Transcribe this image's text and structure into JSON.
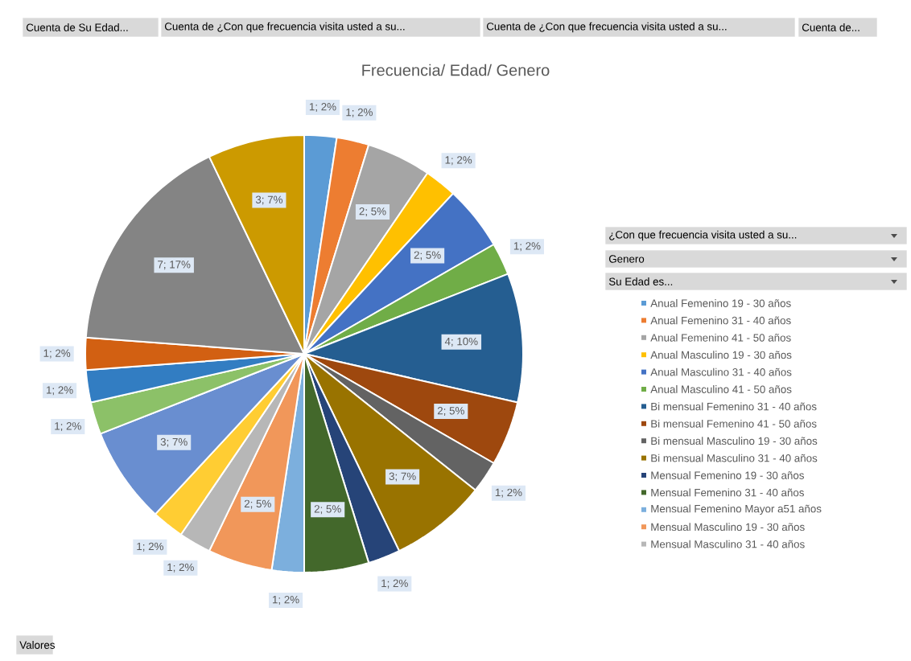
{
  "chart_data": {
    "type": "pie",
    "title": "Frecuencia/ Edad/ Genero",
    "categories": [
      "Anual Femenino 19 - 30 años",
      "Anual Femenino 31 - 40 años",
      "Anual Femenino 41 - 50 años",
      "Anual Masculino 19 - 30 años",
      "Anual Masculino 31 - 40 años",
      "Anual Masculino 41 - 50 años",
      "Bi mensual Femenino 31 - 40 años",
      "Bi mensual Femenino 41 - 50 años",
      "Bi mensual Masculino 19 - 30 años",
      "Bi mensual Masculino 31 - 40 años",
      "Mensual Femenino 19 - 30 años",
      "Mensual Femenino 31 - 40 años",
      "Mensual Femenino Mayor a51 años",
      "Mensual Masculino 19 - 30 años",
      "Mensual Masculino 31 - 40 años",
      null,
      null,
      null,
      null,
      null,
      null,
      null
    ],
    "values": [
      1,
      1,
      2,
      1,
      2,
      1,
      4,
      2,
      1,
      3,
      1,
      2,
      1,
      2,
      1,
      1,
      3,
      1,
      1,
      1,
      7,
      3
    ],
    "value_labels": [
      "1; 2%",
      "1; 2%",
      "2; 5%",
      "1; 2%",
      "2; 5%",
      "1; 2%",
      "4; 10%",
      "2; 5%",
      "1; 2%",
      "3; 7%",
      "1; 2%",
      "2; 5%",
      "1; 2%",
      "2; 5%",
      "1; 2%",
      "1; 2%",
      "3; 7%",
      "1; 2%",
      "1; 2%",
      "1; 2%",
      "7; 17%",
      "3; 7%"
    ],
    "colors": [
      "#5b9bd5",
      "#ed7d31",
      "#a5a5a5",
      "#ffc000",
      "#4472c4",
      "#70ad47",
      "#255e91",
      "#9e480e",
      "#636363",
      "#997300",
      "#264478",
      "#43682b",
      "#7cafdd",
      "#f1975a",
      "#b7b7b7",
      "#ffcd33",
      "#698ed0",
      "#8cc168",
      "#327dc2",
      "#d26012",
      "#848484",
      "#cc9a00"
    ],
    "legend": "right",
    "annotations": [
      "Cuenta de Su Edad...",
      "Cuenta de ¿Con que frecuencia visita usted a su...",
      "Cuenta de ¿Con que frecuencia visita usted a su...",
      "Cuenta de...",
      "¿Con que frecuencia visita usted a su...",
      "Genero",
      "Su Edad es...",
      "Valores"
    ]
  }
}
